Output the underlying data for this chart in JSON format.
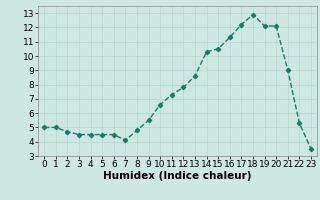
{
  "x": [
    0,
    1,
    2,
    3,
    4,
    5,
    6,
    7,
    8,
    9,
    10,
    11,
    12,
    13,
    14,
    15,
    16,
    17,
    18,
    19,
    20,
    21,
    22,
    23
  ],
  "y": [
    5.0,
    5.0,
    4.7,
    4.5,
    4.5,
    4.5,
    4.5,
    4.1,
    4.8,
    5.5,
    6.6,
    7.3,
    7.8,
    8.6,
    10.3,
    10.5,
    11.3,
    12.2,
    12.9,
    12.1,
    12.1,
    9.0,
    5.3,
    3.5
  ],
  "line_color": "#1a7a6a",
  "marker": "D",
  "marker_size": 2.2,
  "xlabel": "Humidex (Indice chaleur)",
  "xlabel_fontsize": 7.5,
  "xlim": [
    -0.5,
    23.5
  ],
  "ylim": [
    3,
    13.5
  ],
  "yticks": [
    3,
    4,
    5,
    6,
    7,
    8,
    9,
    10,
    11,
    12,
    13
  ],
  "xticks": [
    0,
    1,
    2,
    3,
    4,
    5,
    6,
    7,
    8,
    9,
    10,
    11,
    12,
    13,
    14,
    15,
    16,
    17,
    18,
    19,
    20,
    21,
    22,
    23
  ],
  "background_color": "#cde8e0",
  "grid_color": "#b8d4ce",
  "tick_fontsize": 6.5,
  "linewidth": 1.0
}
